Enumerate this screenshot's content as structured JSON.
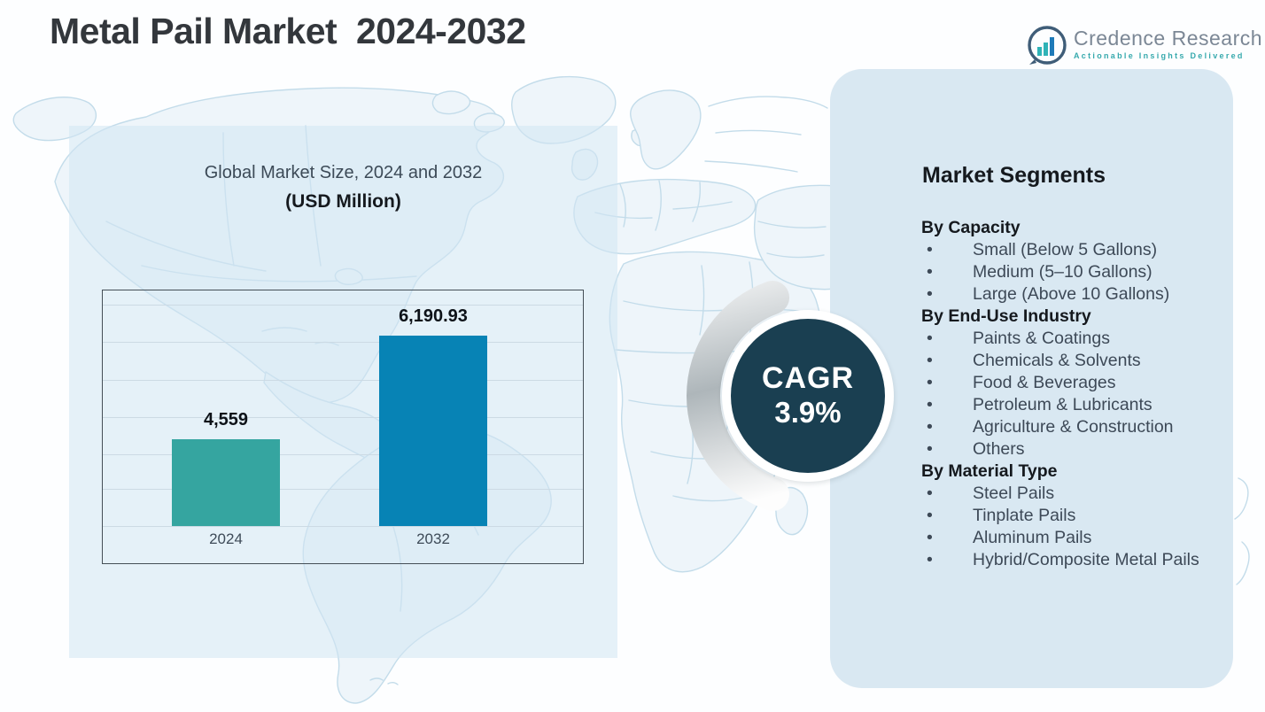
{
  "page_title": "Metal Pail Market  2024-2032",
  "logo": {
    "brand": "Credence Research",
    "tagline": "Actionable Insights Delivered",
    "icon": "bar-chart-circle-icon"
  },
  "left_chart": {
    "title": "Global Market Size, 2024 and 2032",
    "subtitle": "(USD Million)"
  },
  "chart_data": {
    "type": "bar",
    "title": "Global Market Size, 2024 and 2032 (USD Million)",
    "categories": [
      "2024",
      "2032"
    ],
    "values": [
      4559,
      6190.93
    ],
    "value_labels": [
      "4,559",
      "6,190.93"
    ],
    "bar_colors": [
      "#35a5a0",
      "#0783b5"
    ],
    "ylabel": "",
    "xlabel": "",
    "ylim": [
      3200,
      6900
    ],
    "grid": true,
    "legend": false
  },
  "cagr_badge": {
    "label": "CAGR",
    "value": "3.9%"
  },
  "segments_panel": {
    "heading": "Market Segments",
    "bullet": "•",
    "groups": [
      {
        "title": "By Capacity",
        "items": [
          "Small (Below 5 Gallons)",
          "Medium (5–10 Gallons)",
          "Large (Above 10 Gallons)"
        ]
      },
      {
        "title": "By End-Use Industry",
        "items": [
          "Paints & Coatings",
          "Chemicals & Solvents",
          "Food & Beverages",
          "Petroleum & Lubricants",
          "Agriculture & Construction",
          "Others"
        ]
      },
      {
        "title": "By Material Type",
        "items": [
          "Steel Pails",
          "Tinplate Pails",
          "Aluminum Pails",
          "Hybrid/Composite Metal Pails"
        ]
      }
    ]
  },
  "colors": {
    "bar_2024": "#35a5a0",
    "bar_2032": "#0783b5",
    "cagr_circle": "#1a3f51",
    "right_panel_bg": "#d9e8f2",
    "left_panel_bg": "#d2e5f3",
    "map_stroke": "#c3dcea",
    "title_text": "#33373c",
    "body_text": "#3d4957",
    "logo_teal": "#36a9ad",
    "logo_gray": "#7b8795"
  }
}
